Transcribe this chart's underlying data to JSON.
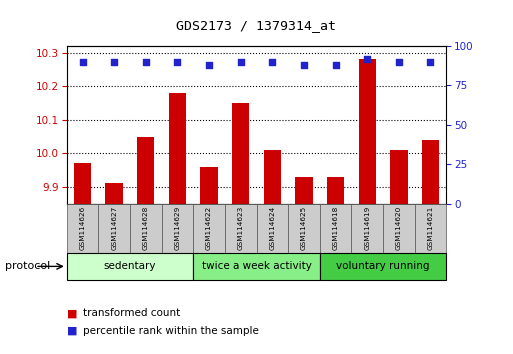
{
  "title": "GDS2173 / 1379314_at",
  "samples": [
    "GSM114626",
    "GSM114627",
    "GSM114628",
    "GSM114629",
    "GSM114622",
    "GSM114623",
    "GSM114624",
    "GSM114625",
    "GSM114618",
    "GSM114619",
    "GSM114620",
    "GSM114621"
  ],
  "transformed_counts": [
    9.97,
    9.91,
    10.05,
    10.18,
    9.96,
    10.15,
    10.01,
    9.93,
    9.93,
    10.28,
    10.01,
    10.04
  ],
  "percentile_ranks": [
    90,
    90,
    90,
    90,
    88,
    90,
    90,
    88,
    88,
    92,
    90,
    90
  ],
  "bar_color": "#cc0000",
  "dot_color": "#2222cc",
  "ylim_left": [
    9.85,
    10.32
  ],
  "ylim_right": [
    0,
    100
  ],
  "yticks_left": [
    9.9,
    10.0,
    10.1,
    10.2,
    10.3
  ],
  "yticks_right": [
    0,
    25,
    50,
    75,
    100
  ],
  "groups": [
    {
      "label": "sedentary",
      "start": 0,
      "end": 4,
      "color": "#ccffcc"
    },
    {
      "label": "twice a week activity",
      "start": 4,
      "end": 8,
      "color": "#88ee88"
    },
    {
      "label": "voluntary running",
      "start": 8,
      "end": 12,
      "color": "#44cc44"
    }
  ],
  "protocol_label": "protocol",
  "legend_bar_label": "transformed count",
  "legend_dot_label": "percentile rank within the sample",
  "bar_width": 0.55,
  "sample_box_color": "#cccccc",
  "left_axis_color": "#cc0000",
  "right_axis_color": "#2222cc",
  "background_color": "#ffffff"
}
